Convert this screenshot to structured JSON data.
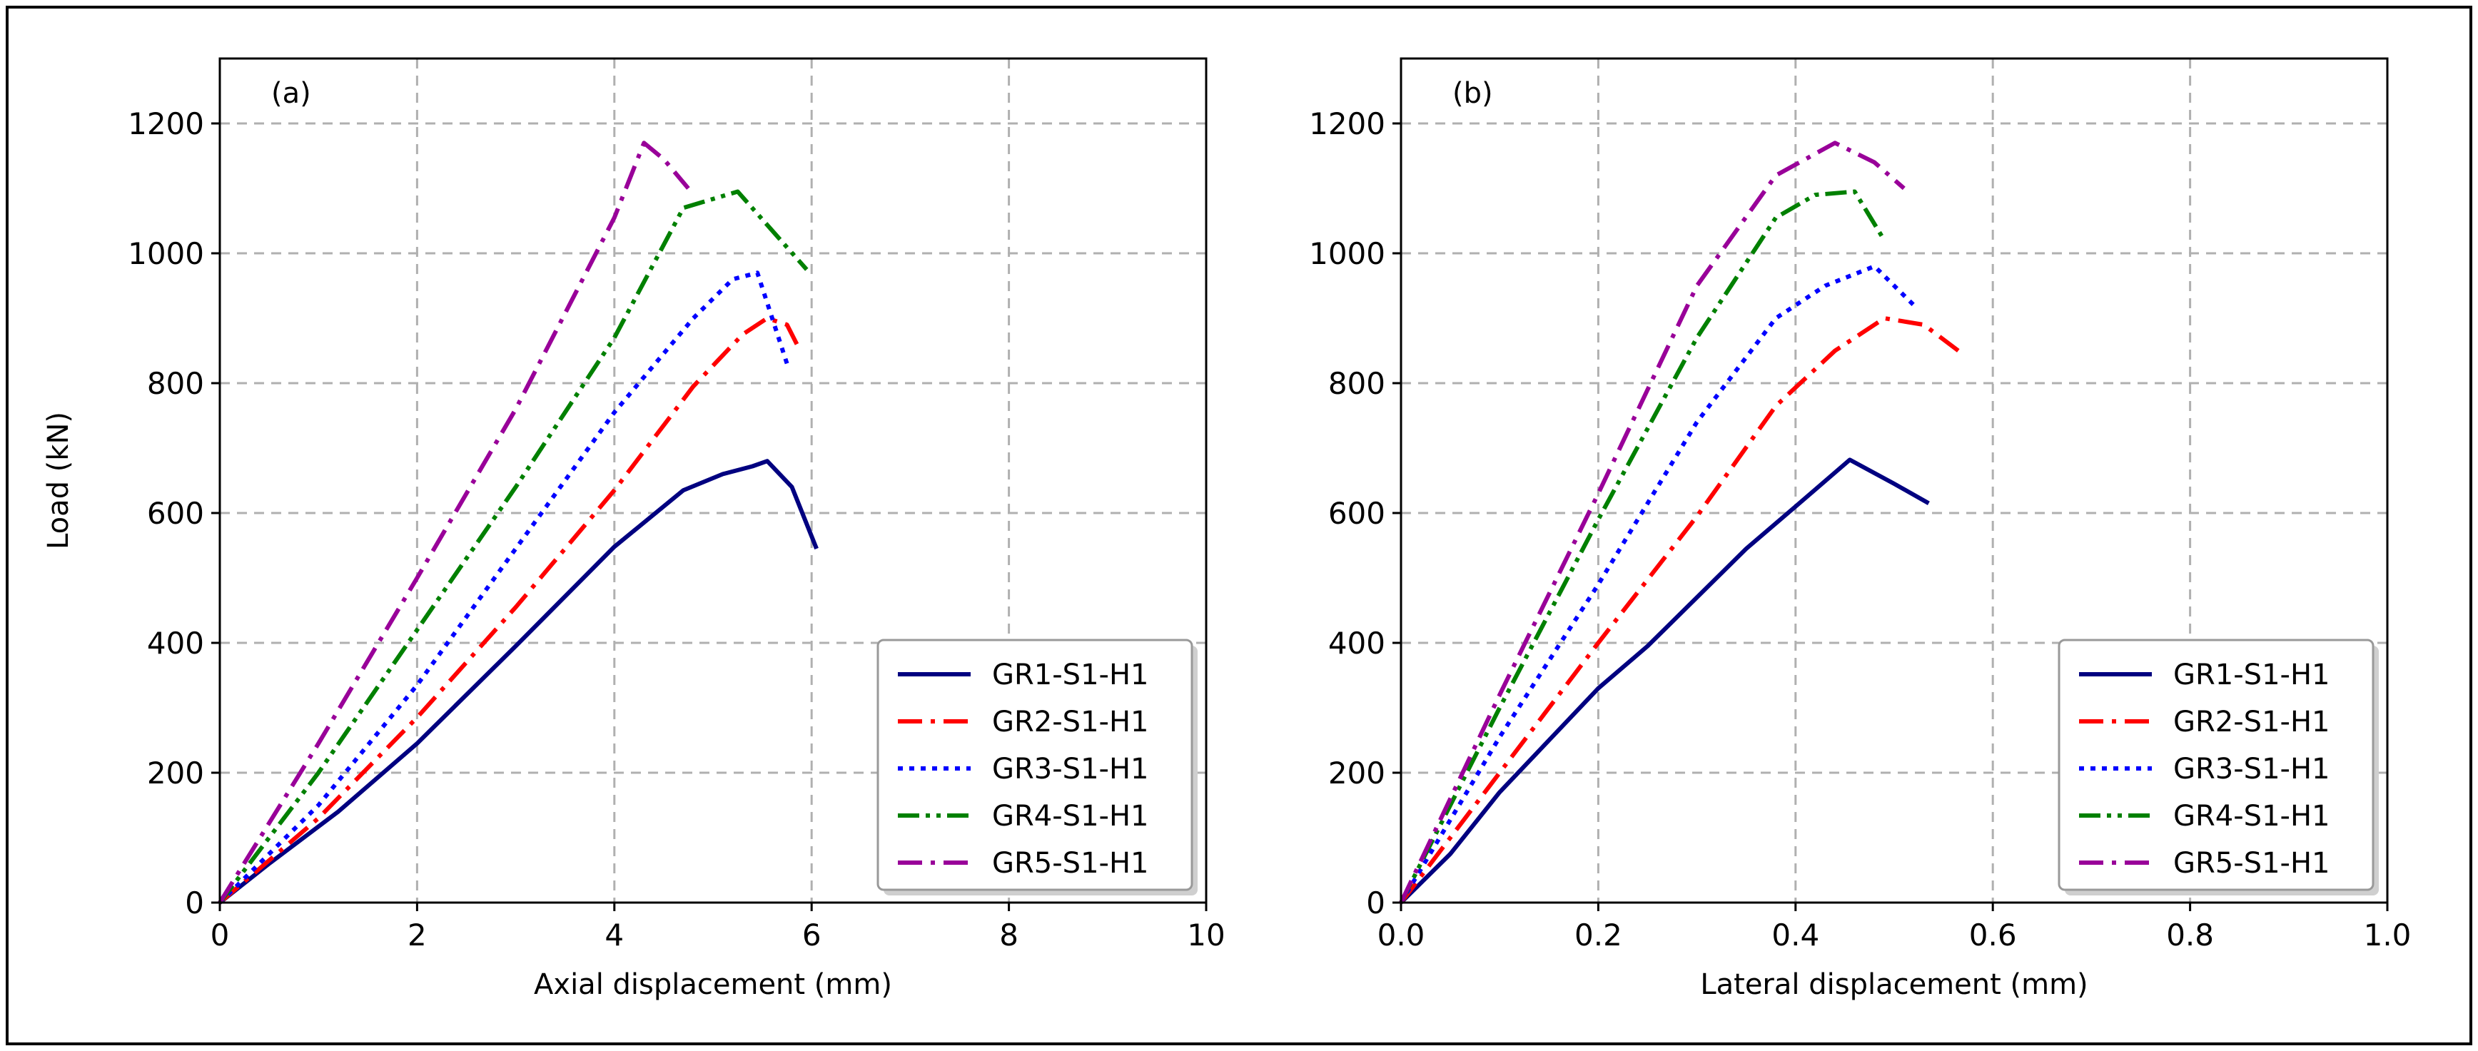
{
  "chart_data": [
    {
      "type": "line",
      "panel_label": "(a)",
      "xlabel": "Axial displacement (mm)",
      "ylabel": "Load (kN)",
      "xlim": [
        0,
        10
      ],
      "ylim": [
        0,
        1300
      ],
      "xticks": [
        0,
        2,
        4,
        6,
        8,
        10
      ],
      "xtick_labels": [
        "0",
        "2",
        "4",
        "6",
        "8",
        "10"
      ],
      "yticks": [
        0,
        200,
        400,
        600,
        800,
        1000,
        1200
      ],
      "ytick_labels": [
        "0",
        "200",
        "400",
        "600",
        "800",
        "1000",
        "1200"
      ],
      "grid": true,
      "legend_position": "lower-right",
      "series": [
        {
          "name": "GR1-S1-H1",
          "color": "#000080",
          "style": "solid",
          "x": [
            0,
            0.5,
            1.2,
            2.0,
            3.0,
            4.0,
            4.7,
            5.1,
            5.4,
            5.55,
            5.8,
            6.05
          ],
          "y": [
            0,
            60,
            140,
            245,
            395,
            548,
            635,
            660,
            672,
            680,
            640,
            545
          ]
        },
        {
          "name": "GR2-S1-H1",
          "color": "#ff0000",
          "style": "dashdot",
          "x": [
            0,
            1.0,
            2.0,
            3.0,
            4.0,
            4.8,
            5.3,
            5.55,
            5.75,
            5.85
          ],
          "y": [
            0,
            130,
            285,
            455,
            635,
            795,
            875,
            900,
            890,
            860
          ]
        },
        {
          "name": "GR3-S1-H1",
          "color": "#0000ff",
          "style": "dotted",
          "x": [
            0,
            1.0,
            2.0,
            3.0,
            4.0,
            4.8,
            5.2,
            5.45,
            5.75
          ],
          "y": [
            0,
            150,
            335,
            545,
            755,
            900,
            960,
            970,
            830
          ]
        },
        {
          "name": "GR4-S1-H1",
          "color": "#008000",
          "style": "dashdotdot",
          "x": [
            0,
            1.0,
            2.0,
            3.0,
            4.0,
            4.7,
            5.25,
            5.95
          ],
          "y": [
            0,
            200,
            420,
            640,
            870,
            1070,
            1095,
            975
          ]
        },
        {
          "name": "GR5-S1-H1",
          "color": "#990099",
          "style": "dashdot",
          "x": [
            0,
            1.0,
            2.0,
            3.0,
            4.0,
            4.3,
            4.5,
            4.75
          ],
          "y": [
            0,
            245,
            500,
            760,
            1055,
            1170,
            1145,
            1100
          ]
        }
      ]
    },
    {
      "type": "line",
      "panel_label": "(b)",
      "xlabel": "Lateral displacement (mm)",
      "ylabel": "",
      "xlim": [
        0,
        1.0
      ],
      "ylim": [
        0,
        1300
      ],
      "xticks": [
        0,
        0.2,
        0.4,
        0.6,
        0.8,
        1.0
      ],
      "xtick_labels": [
        "0.0",
        "0.2",
        "0.4",
        "0.6",
        "0.8",
        "1.0"
      ],
      "yticks": [
        0,
        200,
        400,
        600,
        800,
        1000,
        1200
      ],
      "ytick_labels": [
        "0",
        "200",
        "400",
        "600",
        "800",
        "1000",
        "1200"
      ],
      "grid": true,
      "legend_position": "lower-right",
      "series": [
        {
          "name": "GR1-S1-H1",
          "color": "#000080",
          "style": "solid",
          "x": [
            0,
            0.05,
            0.1,
            0.2,
            0.25,
            0.3,
            0.35,
            0.4,
            0.455,
            0.5,
            0.535
          ],
          "y": [
            0,
            75,
            170,
            330,
            395,
            470,
            545,
            610,
            682,
            645,
            615
          ]
        },
        {
          "name": "GR2-S1-H1",
          "color": "#ff0000",
          "style": "dashdot",
          "x": [
            0,
            0.1,
            0.2,
            0.3,
            0.38,
            0.44,
            0.49,
            0.53,
            0.565
          ],
          "y": [
            0,
            200,
            400,
            595,
            765,
            850,
            900,
            890,
            850
          ]
        },
        {
          "name": "GR3-S1-H1",
          "color": "#0000ff",
          "style": "dotted",
          "x": [
            0,
            0.1,
            0.2,
            0.3,
            0.38,
            0.43,
            0.48,
            0.52
          ],
          "y": [
            0,
            255,
            490,
            740,
            900,
            950,
            980,
            920
          ]
        },
        {
          "name": "GR4-S1-H1",
          "color": "#008000",
          "style": "dashdotdot",
          "x": [
            0,
            0.1,
            0.2,
            0.3,
            0.38,
            0.42,
            0.46,
            0.49
          ],
          "y": [
            0,
            300,
            590,
            870,
            1055,
            1090,
            1095,
            1020
          ]
        },
        {
          "name": "GR5-S1-H1",
          "color": "#990099",
          "style": "dashdot",
          "x": [
            0,
            0.1,
            0.2,
            0.3,
            0.38,
            0.44,
            0.48,
            0.51
          ],
          "y": [
            0,
            320,
            630,
            950,
            1120,
            1170,
            1140,
            1100
          ]
        }
      ]
    }
  ]
}
